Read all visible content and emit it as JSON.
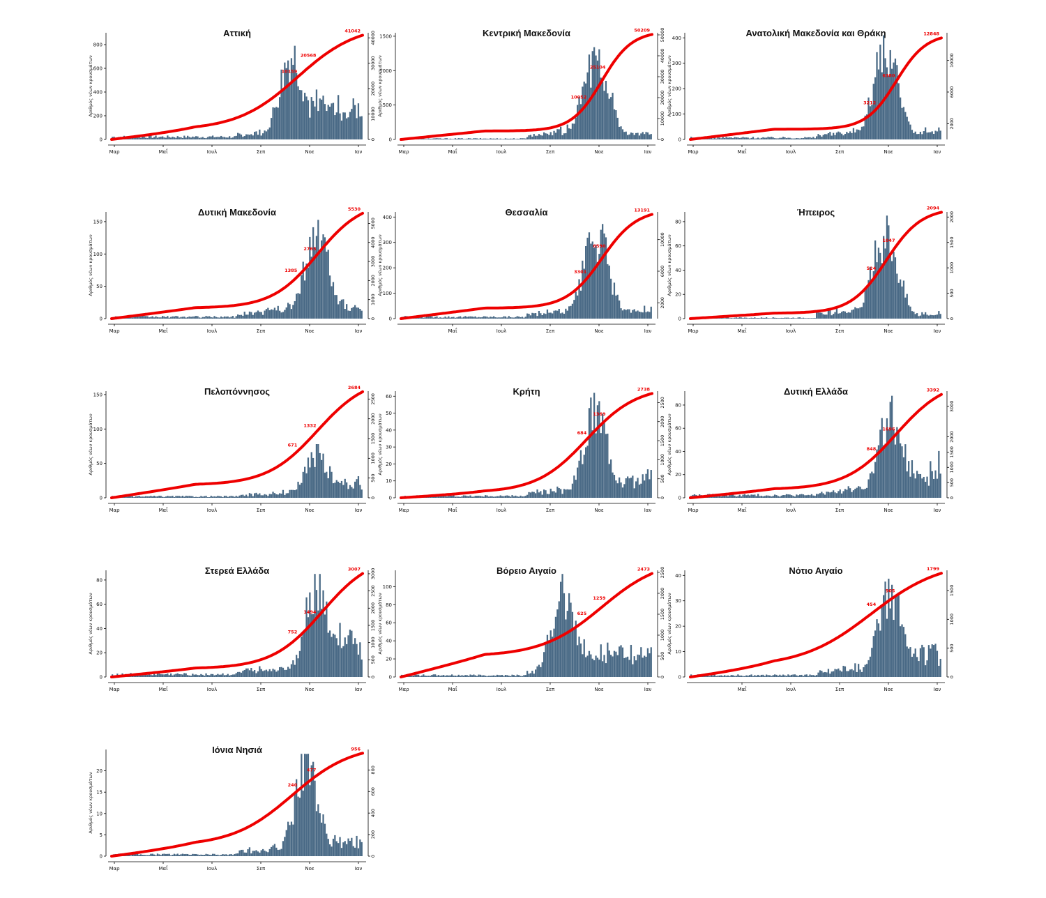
{
  "colors": {
    "bar": "#4a6a86",
    "line": "#ee0000",
    "axis": "#000000"
  },
  "ylabel": "Αριθμός νέων κρουσμάτων",
  "months": [
    "Μαρ",
    "Μαΐ",
    "Ιουλ",
    "Σεπ",
    "Νοε",
    "Ιαν"
  ],
  "chart_data": [
    {
      "type": "bar+line",
      "region": "Αττική",
      "title": "Αττική",
      "x_ticks": [
        "Μαρ",
        "Μαΐ",
        "Ιουλ",
        "Σεπ",
        "Νοε",
        "Ιαν"
      ],
      "ylim_left": [
        0,
        900
      ],
      "left_ticks": [
        0,
        200,
        400,
        600,
        800
      ],
      "ylim_right": [
        0,
        42000
      ],
      "right_ticks": [
        0,
        10000,
        20000,
        30000,
        40000
      ],
      "start": 0.0,
      "peak": 0.72,
      "peak_value": 860,
      "end_level": 0.4,
      "base_level": 0.03,
      "cum_mid": 0.74,
      "cum_steep": 0.12,
      "cum_early": 0.09,
      "labels": [
        "10159",
        "20568",
        "41042"
      ],
      "final": "41042"
    },
    {
      "type": "bar+line",
      "region": "Κεντρική Μακεδονία",
      "title": "Κεντρική Μακεδονία",
      "x_ticks": [
        "Μαρ",
        "Μαΐ",
        "Ιουλ",
        "Σεπ",
        "Νοε",
        "Ιαν"
      ],
      "ylim_left": [
        0,
        1550
      ],
      "left_ticks": [
        0,
        500,
        1000,
        1500
      ],
      "ylim_right": [
        0,
        51000
      ],
      "right_ticks": [
        0,
        10000,
        20000,
        30000,
        40000,
        50000
      ],
      "start": 0.0,
      "peak": 0.78,
      "peak_value": 1500,
      "end_level": 0.08,
      "base_level": 0.01,
      "cum_mid": 0.8,
      "cum_steep": 0.06,
      "cum_early": 0.08,
      "labels": [
        "10052",
        "25104",
        "50209"
      ],
      "final": "50209"
    },
    {
      "type": "bar+line",
      "region": "Ανατολική Μακεδονία και Θράκη",
      "title": "Ανατολική Μακεδονία και Θράκη",
      "x_ticks": [
        "Μαρ",
        "Μαΐ",
        "Ιουλ",
        "Σεπ",
        "Νοε",
        "Ιαν"
      ],
      "ylim_left": [
        0,
        420
      ],
      "left_ticks": [
        0,
        100,
        200,
        300,
        400
      ],
      "ylim_right": [
        0,
        13500
      ],
      "right_ticks": [
        2000,
        6000,
        10000
      ],
      "start": 0.0,
      "peak": 0.78,
      "peak_value": 410,
      "end_level": 0.1,
      "base_level": 0.02,
      "cum_mid": 0.82,
      "cum_steep": 0.06,
      "cum_early": 0.1,
      "labels": [
        "3212",
        "6380",
        "12848"
      ],
      "final": "12848"
    },
    {
      "type": "bar+line",
      "region": "Δυτική Μακεδονία",
      "title": "Δυτική Μακεδονία",
      "x_ticks": [
        "Μαρ",
        "Μαΐ",
        "Ιουλ",
        "Σεπ",
        "Νοε",
        "Ιαν"
      ],
      "ylim_left": [
        0,
        165
      ],
      "left_ticks": [
        0,
        50,
        100,
        150
      ],
      "ylim_right": [
        0,
        5600
      ],
      "right_ticks": [
        0,
        1000,
        2000,
        3000,
        4000,
        5000
      ],
      "start": 0.0,
      "peak": 0.82,
      "peak_value": 162,
      "end_level": 0.15,
      "base_level": 0.02,
      "cum_mid": 0.82,
      "cum_steep": 0.09,
      "cum_early": 0.1,
      "labels": [
        "1385",
        "2765",
        "5530"
      ],
      "final": "5530"
    },
    {
      "type": "bar+line",
      "region": "Θεσσαλία",
      "title": "Θεσσαλία",
      "x_ticks": [
        "Μαΐ",
        "Ιουλ",
        "Σεπ",
        "Νοε",
        "Ιαν"
      ],
      "ylim_left": [
        0,
        420
      ],
      "left_ticks": [
        0,
        100,
        200,
        300,
        400
      ],
      "ylim_right": [
        0,
        13500
      ],
      "right_ticks": [
        2000,
        6000,
        10000
      ],
      "start": 0.0,
      "peak": 0.78,
      "peak_value": 405,
      "end_level": 0.1,
      "base_level": 0.02,
      "cum_mid": 0.8,
      "cum_steep": 0.07,
      "cum_early": 0.1,
      "labels": [
        "3301",
        "6590",
        "13191"
      ],
      "final": "13191"
    },
    {
      "type": "bar+line",
      "region": "Ήπειρος",
      "title": "Ήπειρος",
      "x_ticks": [
        "Μαρ",
        "Μαΐ",
        "Ιουλ",
        "Σεπ",
        "Νοε",
        "Ιαν"
      ],
      "ylim_left": [
        0,
        88
      ],
      "left_ticks": [
        0,
        20,
        40,
        60,
        80
      ],
      "ylim_right": [
        0,
        2100
      ],
      "right_ticks": [
        0,
        500,
        1000,
        1500,
        2000
      ],
      "start": 0.0,
      "peak": 0.78,
      "peak_value": 85,
      "end_level": 0.06,
      "base_level": 0.01,
      "cum_mid": 0.78,
      "cum_steep": 0.07,
      "cum_early": 0.05,
      "labels": [
        "524",
        "1047",
        "2094"
      ],
      "final": "2094"
    },
    {
      "type": "bar+line",
      "region": "Πελοπόννησος",
      "title": "Πελοπόννησος",
      "x_ticks": [
        "Μαρ",
        "Μαΐ",
        "Ιουλ",
        "Σεπ",
        "Νοε",
        "Ιαν"
      ],
      "ylim_left": [
        0,
        155
      ],
      "left_ticks": [
        0,
        50,
        100,
        150
      ],
      "ylim_right": [
        0,
        2700
      ],
      "right_ticks": [
        0,
        500,
        1000,
        1500,
        2000,
        2500
      ],
      "start": 0.0,
      "peak": 0.82,
      "peak_value": 78,
      "end_level": 0.35,
      "base_level": 0.03,
      "cum_mid": 0.82,
      "cum_steep": 0.1,
      "cum_early": 0.12,
      "labels": [
        "671",
        "1332",
        "2684"
      ],
      "final": "2684"
    },
    {
      "type": "bar+line",
      "region": "Κρήτη",
      "title": "Κρήτη",
      "x_ticks": [
        "Μαρ",
        "Μαΐ",
        "Ιουλ",
        "Σεπ",
        "Νοε",
        "Ιαν"
      ],
      "ylim_left": [
        0,
        63
      ],
      "left_ticks": [
        0,
        10,
        20,
        30,
        40,
        50,
        60
      ],
      "ylim_right": [
        0,
        2800
      ],
      "right_ticks": [
        0,
        500,
        1000,
        1500,
        2000,
        2500
      ],
      "start": 0.0,
      "peak": 0.78,
      "peak_value": 62,
      "end_level": 0.25,
      "base_level": 0.02,
      "cum_mid": 0.74,
      "cum_steep": 0.1,
      "cum_early": 0.05,
      "labels": [
        "684",
        "1369",
        "2738"
      ],
      "final": "2738"
    },
    {
      "type": "bar+line",
      "region": "Δυτική Ελλάδα",
      "title": "Δυτική Ελλάδα",
      "x_ticks": [
        "Μαρ",
        "Μαΐ",
        "Ιουλ",
        "Σεπ",
        "Νοε",
        "Ιαν"
      ],
      "ylim_left": [
        0,
        92
      ],
      "left_ticks": [
        0,
        20,
        40,
        60,
        80
      ],
      "ylim_right": [
        0,
        3500
      ],
      "right_ticks": [
        0,
        500,
        1000,
        1500,
        2000,
        3000
      ],
      "start": 0.0,
      "peak": 0.8,
      "peak_value": 88,
      "end_level": 0.35,
      "base_level": 0.03,
      "cum_mid": 0.82,
      "cum_steep": 0.1,
      "cum_early": 0.08,
      "labels": [
        "848",
        "1696",
        "3392"
      ],
      "final": "3392"
    },
    {
      "type": "bar+line",
      "region": "Στερεά Ελλάδα",
      "title": "Στερεά Ελλάδα",
      "x_ticks": [
        "Μαρ",
        "Μαΐ",
        "Ιουλ",
        "Σεπ",
        "Νοε",
        "Ιαν"
      ],
      "ylim_left": [
        0,
        88
      ],
      "left_ticks": [
        0,
        20,
        40,
        60,
        80
      ],
      "ylim_right": [
        0,
        3100
      ],
      "right_ticks": [
        0,
        500,
        1000,
        1500,
        2000,
        2500,
        3000
      ],
      "start": 0.0,
      "peak": 0.82,
      "peak_value": 85,
      "end_level": 0.45,
      "base_level": 0.03,
      "cum_mid": 0.84,
      "cum_steep": 0.1,
      "cum_early": 0.08,
      "labels": [
        "752",
        "1494",
        "3007"
      ],
      "final": "3007"
    },
    {
      "type": "bar+line",
      "region": "Βόρειο Αιγαίο",
      "title": "Βόρειο Αιγαίο",
      "x_ticks": [
        "Μαρ",
        "Μαΐ",
        "Ιουλ",
        "Σεπ",
        "Νοε",
        "Ιαν"
      ],
      "ylim_left": [
        0,
        118
      ],
      "left_ticks": [
        0,
        20,
        40,
        60,
        80,
        100
      ],
      "ylim_right": [
        0,
        2550
      ],
      "right_ticks": [
        0,
        500,
        1000,
        1500,
        2000,
        2500
      ],
      "start": 0.0,
      "peak": 0.65,
      "peak_value": 114,
      "end_level": 0.3,
      "base_level": 0.02,
      "cum_mid": 0.8,
      "cum_steep": 0.12,
      "cum_early": 0.2,
      "labels": [
        "625",
        "1259",
        "2473"
      ],
      "final": "2473"
    },
    {
      "type": "bar+line",
      "region": "Νότιο Αιγαίο",
      "title": "Νότιο Αιγαίο",
      "x_ticks": [
        "Μαΐ",
        "Ιουλ",
        "Σεπ",
        "Νοε",
        "Ιαν"
      ],
      "ylim_left": [
        0,
        42
      ],
      "left_ticks": [
        0,
        10,
        20,
        30,
        40
      ],
      "ylim_right": [
        0,
        1850
      ],
      "right_ticks": [
        0,
        500,
        1000,
        1500
      ],
      "start": 0.0,
      "peak": 0.8,
      "peak_value": 40,
      "end_level": 0.3,
      "base_level": 0.02,
      "cum_mid": 0.72,
      "cum_steep": 0.14,
      "cum_early": 0.1,
      "labels": [
        "454",
        "905",
        "1799"
      ],
      "final": "1799"
    },
    {
      "type": "bar+line",
      "region": "Ιόνια Νησιά",
      "title": "Ιόνια Νησιά",
      "x_ticks": [
        "Μαρ",
        "Μαΐ",
        "Ιουλ",
        "Σεπ",
        "Νοε",
        "Ιαν"
      ],
      "ylim_left": [
        0,
        25
      ],
      "left_ticks": [
        0,
        5,
        10,
        15,
        20
      ],
      "ylim_right": [
        0,
        990
      ],
      "right_ticks": [
        0,
        200,
        400,
        600,
        800
      ],
      "start": 0.0,
      "peak": 0.78,
      "peak_value": 24,
      "end_level": 0.2,
      "base_level": 0.02,
      "cum_mid": 0.72,
      "cum_steep": 0.12,
      "cum_early": 0.1,
      "labels": [
        "240",
        "477",
        "956"
      ],
      "final": "956"
    }
  ]
}
